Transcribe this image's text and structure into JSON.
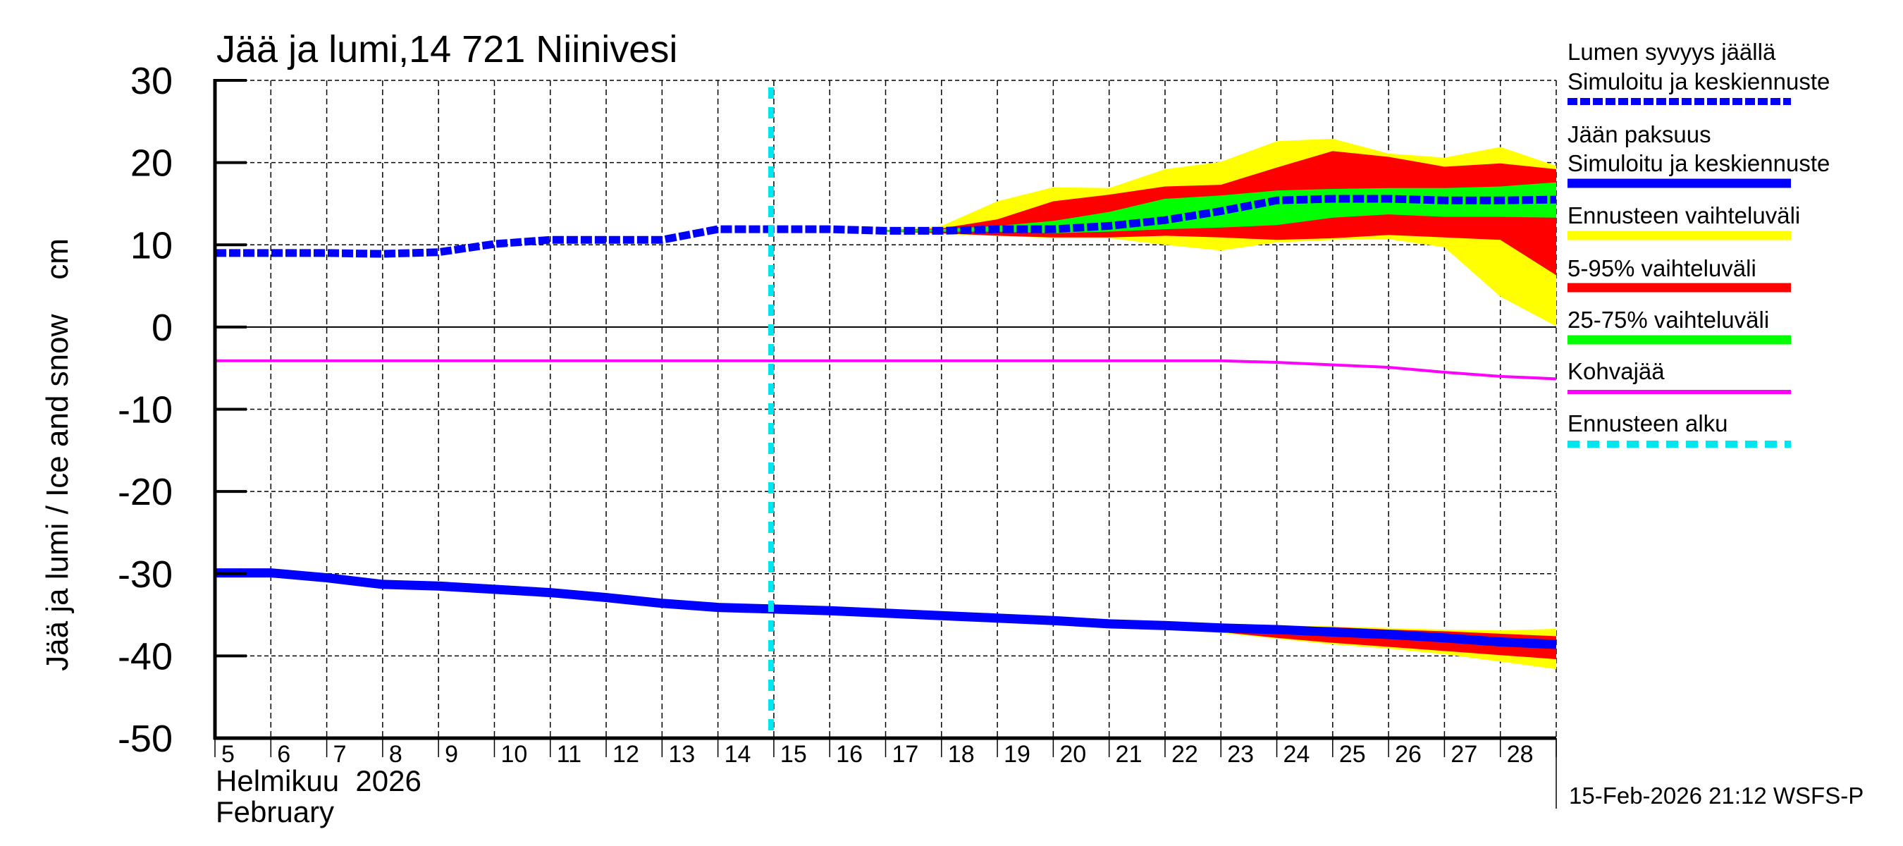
{
  "title": "Jää ja lumi,14 721 Niinivesi",
  "y_axis_label": "Jää ja lumi / Ice and snow    cm",
  "x_axis": {
    "month_fi": "Helmikuu  2026",
    "month_en": "February",
    "day_labels": [
      "5",
      "6",
      "7",
      "8",
      "9",
      "10",
      "11",
      "12",
      "13",
      "14",
      "15",
      "16",
      "17",
      "18",
      "19",
      "20",
      "21",
      "22",
      "23",
      "24",
      "25",
      "26",
      "27",
      "28"
    ]
  },
  "timestamp": "15-Feb-2026 21:12 WSFS-P",
  "colors": {
    "snow": "#0000ff",
    "ice": "#0000ff",
    "range_full": "#ffff00",
    "range_5_95": "#ff0000",
    "range_25_75": "#00ff00",
    "slush_ice": "#ff00ff",
    "forecast_start": "#00e5ee"
  },
  "legend": [
    {
      "label1": "Lumen syvyys jäällä",
      "label2": "Simuloitu ja keskiennuste",
      "style": "dashed-blue"
    },
    {
      "label1": "Jään paksuus",
      "label2": "Simuloitu ja keskiennuste",
      "style": "solid-blue"
    },
    {
      "label1": "Ennusteen vaihteluväli",
      "style": "yellow"
    },
    {
      "label1": "5-95% vaihteluväli",
      "style": "red"
    },
    {
      "label1": "25-75% vaihteluväli",
      "style": "green"
    },
    {
      "label1": "Kohvajää",
      "style": "magenta"
    },
    {
      "label1": "Ennusteen alku",
      "style": "cyan-dashed"
    }
  ],
  "chart_data": {
    "type": "line",
    "title": "Jää ja lumi,14 721 Niinivesi",
    "xlabel": "Helmikuu 2026 / February",
    "ylabel": "Jää ja lumi / Ice and snow    cm",
    "xlim": [
      5,
      29
    ],
    "ylim": [
      -50,
      30
    ],
    "yticks": [
      30,
      20,
      10,
      0,
      -10,
      -20,
      -30,
      -40,
      -50
    ],
    "grid": true,
    "legend_position": "right",
    "forecast_start_day": 14.95,
    "series": [
      {
        "name": "Lumen syvyys jäällä – Simuloitu ja keskiennuste",
        "style": "dashed",
        "x": [
          5,
          6,
          7,
          8,
          9,
          10,
          11,
          12,
          13,
          14,
          15,
          16,
          17,
          18,
          19,
          20,
          21,
          22,
          23,
          24,
          25,
          26,
          27,
          28,
          29
        ],
        "values": [
          9.0,
          9.0,
          9.0,
          8.9,
          9.1,
          10.1,
          10.6,
          10.6,
          10.6,
          11.9,
          11.9,
          11.9,
          11.7,
          11.7,
          11.9,
          11.9,
          12.3,
          13.0,
          14.1,
          15.4,
          15.6,
          15.6,
          15.4,
          15.4,
          15.5
        ]
      },
      {
        "name": "Jään paksuus – Simuloitu ja keskiennuste",
        "style": "solid",
        "x": [
          5,
          6,
          7,
          8,
          9,
          10,
          11,
          12,
          13,
          14,
          15,
          16,
          17,
          18,
          19,
          20,
          21,
          22,
          23,
          24,
          25,
          26,
          27,
          28,
          29
        ],
        "values": [
          -29.9,
          -29.9,
          -30.5,
          -31.3,
          -31.5,
          -31.9,
          -32.3,
          -32.9,
          -33.6,
          -34.1,
          -34.3,
          -34.5,
          -34.8,
          -35.1,
          -35.4,
          -35.7,
          -36.1,
          -36.3,
          -36.6,
          -36.8,
          -37.1,
          -37.4,
          -37.8,
          -38.3,
          -38.6
        ]
      },
      {
        "name": "Kohvajää",
        "style": "solid",
        "x": [
          5,
          23,
          24,
          25,
          26,
          27,
          28,
          29
        ],
        "values": [
          -4.1,
          -4.1,
          -4.3,
          -4.6,
          -4.9,
          -5.5,
          -6.0,
          -6.3
        ]
      }
    ],
    "bands": [
      {
        "name": "Ennusteen vaihteluväli (snow)",
        "x": [
          17,
          18,
          19,
          20,
          21,
          22,
          23,
          24,
          25,
          26,
          27,
          28,
          29
        ],
        "upper": [
          11.8,
          12.3,
          15.3,
          17.0,
          16.9,
          19.2,
          20.1,
          22.6,
          22.9,
          21.1,
          20.6,
          21.9,
          19.6
        ],
        "lower": [
          11.6,
          11.3,
          11.1,
          10.8,
          10.8,
          10.0,
          9.3,
          10.3,
          10.6,
          10.7,
          9.7,
          3.7,
          0.1
        ]
      },
      {
        "name": "5-95% vaihteluväli (snow)",
        "x": [
          17,
          18,
          19,
          20,
          21,
          22,
          23,
          24,
          25,
          26,
          27,
          28,
          29
        ],
        "upper": [
          11.8,
          12.0,
          13.1,
          15.3,
          16.1,
          17.1,
          17.3,
          19.4,
          21.4,
          20.7,
          19.5,
          19.9,
          19.2
        ],
        "lower": [
          11.6,
          11.4,
          11.1,
          10.9,
          10.9,
          11.1,
          10.9,
          10.6,
          10.8,
          11.2,
          10.9,
          10.6,
          6.3
        ]
      },
      {
        "name": "25-75% vaihteluväli (snow)",
        "x": [
          17,
          18,
          19,
          20,
          21,
          22,
          23,
          24,
          25,
          26,
          27,
          28,
          29
        ],
        "upper": [
          11.8,
          11.9,
          12.3,
          12.9,
          14.0,
          15.6,
          16.0,
          16.6,
          16.8,
          16.9,
          16.9,
          17.1,
          17.6
        ],
        "lower": [
          11.6,
          11.6,
          11.6,
          11.4,
          11.6,
          11.9,
          12.1,
          12.4,
          13.3,
          13.7,
          13.4,
          13.4,
          13.3
        ]
      },
      {
        "name": "Ennusteen vaihteluväli (ice)",
        "x": [
          21,
          22,
          23,
          24,
          25,
          26,
          27,
          28,
          29
        ],
        "upper": [
          -36.0,
          -36.1,
          -36.2,
          -36.3,
          -36.4,
          -36.6,
          -36.8,
          -36.9,
          -36.7
        ],
        "lower": [
          -36.2,
          -36.6,
          -37.2,
          -37.9,
          -38.6,
          -39.1,
          -39.8,
          -40.7,
          -41.6
        ]
      },
      {
        "name": "5-95% vaihteluväli (ice)",
        "x": [
          21,
          22,
          23,
          24,
          25,
          26,
          27,
          28,
          29
        ],
        "upper": [
          -36.0,
          -36.1,
          -36.3,
          -36.4,
          -36.5,
          -36.8,
          -37.0,
          -37.3,
          -37.6
        ],
        "lower": [
          -36.2,
          -36.5,
          -37.1,
          -37.8,
          -38.4,
          -38.9,
          -39.4,
          -39.9,
          -40.4
        ]
      },
      {
        "name": "25-75% vaihteluväli (ice)",
        "x": [
          21,
          22,
          23,
          24,
          25,
          26,
          27,
          28,
          29
        ],
        "upper": [
          -36.0,
          -36.2,
          -36.4,
          -36.6,
          -36.9,
          -37.2,
          -37.6,
          -38.1,
          -38.4
        ],
        "lower": [
          -36.1,
          -36.4,
          -36.7,
          -37.0,
          -37.3,
          -37.6,
          -38.0,
          -38.5,
          -38.8
        ]
      }
    ]
  }
}
